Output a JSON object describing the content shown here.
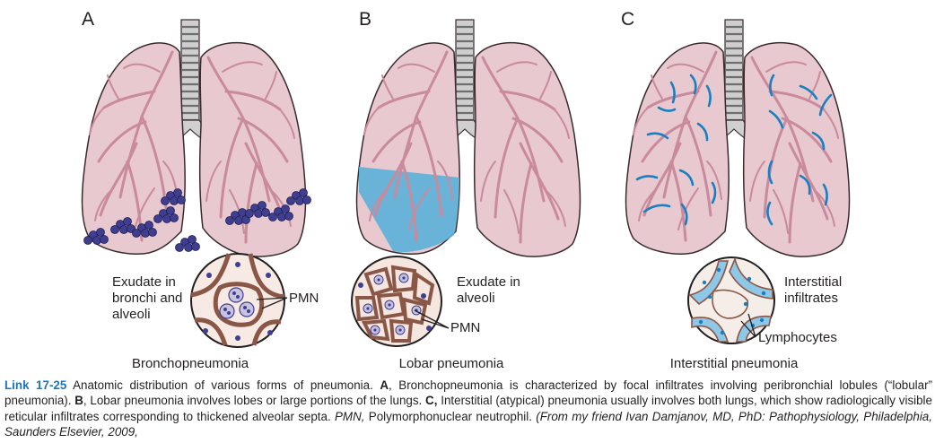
{
  "panels": [
    {
      "letter": "A",
      "name": "Bronchopneumonia",
      "note": [
        "Exudate in",
        "bronchi and",
        "alveoli"
      ],
      "pointer": "PMN"
    },
    {
      "letter": "B",
      "name": "Lobar pneumonia",
      "note": [
        "Exudate in",
        "alveoli"
      ],
      "pointer": "PMN"
    },
    {
      "letter": "C",
      "name": "Interstitial pneumonia",
      "note": [
        "Interstitial",
        "infiltrates"
      ],
      "pointer": "Lymphocytes"
    }
  ],
  "caption": {
    "link_label": "Link 17-25",
    "t1": " Anatomic distribution of various forms of pneumonia. ",
    "a": "A",
    "t2": ", Bronchopneumonia is characterized by focal infiltrates involving peribronchial lobules (“lobular” pneumonia). ",
    "b": "B",
    "t3": ", Lobar pneumonia involves lobes or large portions of the lungs. ",
    "c": "C,",
    "t4": " Interstitial (atypical) pneumonia usually involves both lungs, which show radiologically visible reticular infiltrates corresponding to thickened alveolar septa. ",
    "pmn": "PMN,",
    "t5": " Polymorphonuclear neutrophil. ",
    "from": "(From my friend Ivan Damjanov, MD, PhD: ",
    "book": "Pathophysiology, Philadelphia, Saunders Elsevier, 2009,"
  },
  "colors": {
    "lung_fill": "#e8c9cf",
    "lung_stroke": "#3a2a2e",
    "bronchi": "#c98a9b",
    "pmn": "#3f3e8f",
    "exudate": "#5bb0d9",
    "infiltrate": "#1a7fc0",
    "cell_fill": "#c98a78",
    "trachea": "#bdbdbd"
  }
}
